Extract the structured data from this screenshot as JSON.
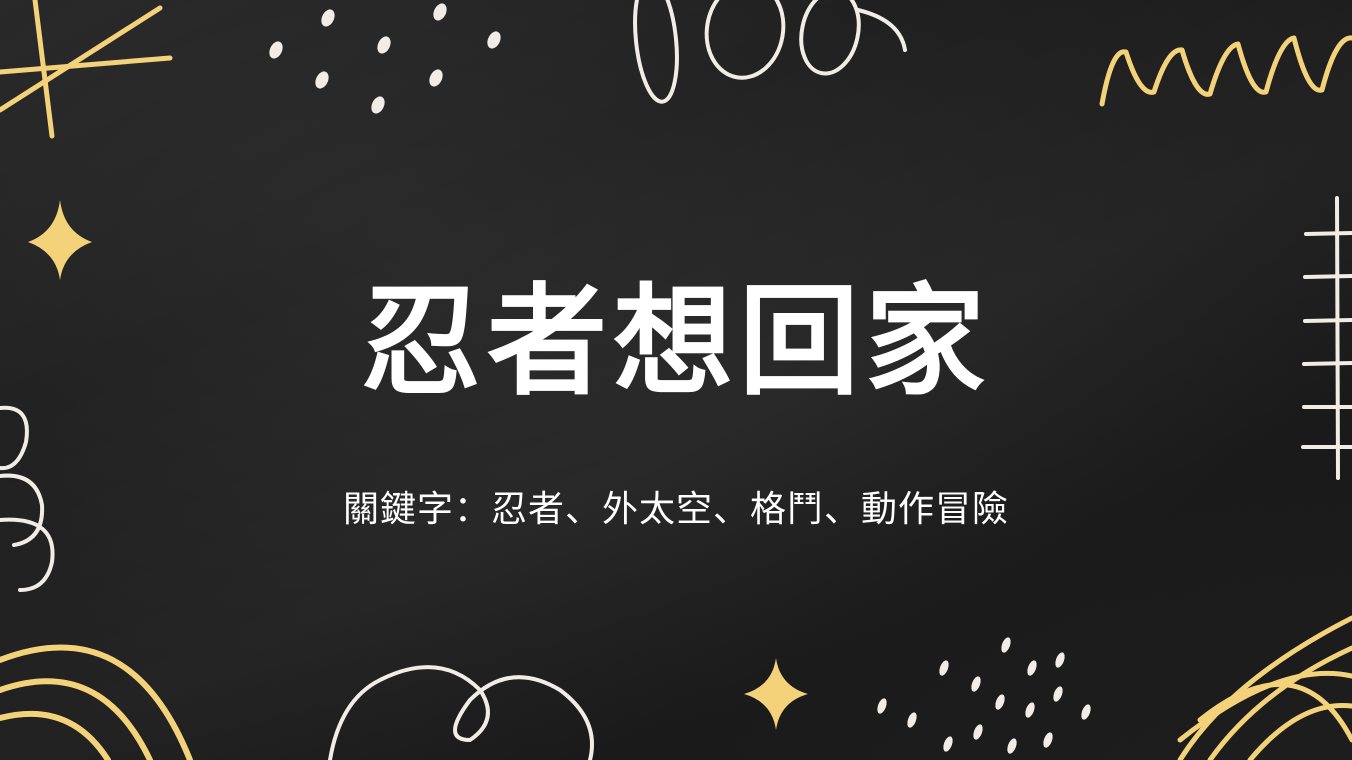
{
  "slide": {
    "title": "忍者想回家",
    "subtitle": "關鍵字：忍者、外太空、格鬥、動作冒險"
  },
  "colors": {
    "background": "#1e1e1e",
    "text": "#ffffff",
    "accent_yellow": "#f3d27a",
    "doodle_white": "#f1ede6"
  }
}
